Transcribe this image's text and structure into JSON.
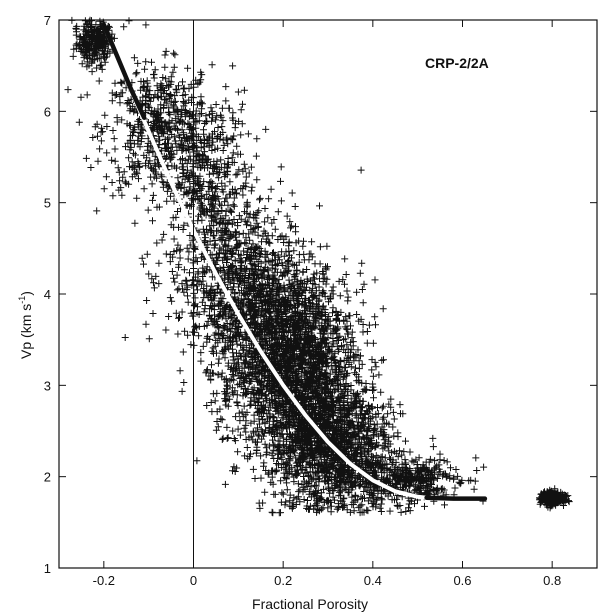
{
  "chart_data": {
    "type": "scatter",
    "title": "",
    "annotation": "CRP-2/2A",
    "xlabel": "Fractional Porosity",
    "ylabel_main": "Vp (km s",
    "ylabel_sup": "-1",
    "ylabel_close": ")",
    "xlim": [
      -0.3,
      0.9
    ],
    "ylim": [
      1,
      7
    ],
    "x_ticks": [
      -0.2,
      0,
      0.2,
      0.4,
      0.6,
      0.8
    ],
    "x_tick_labels": [
      "-0.2",
      "0",
      "0.2",
      "0.4",
      "0.6",
      "0.8"
    ],
    "y_ticks": [
      1,
      2,
      3,
      4,
      5,
      6,
      7
    ],
    "y_tick_labels": [
      "1",
      "2",
      "3",
      "4",
      "5",
      "6",
      "7"
    ],
    "vertical_reference_line_x": 0,
    "grid": false,
    "marker": "+",
    "colors": {
      "points": "#111111",
      "fit_white": "#ffffff",
      "fit_black": "#111111",
      "axes": "#111111"
    },
    "scatter_point_count": 6500,
    "scatter_clusters": [
      {
        "x": -0.22,
        "y": 6.75,
        "sx": 0.02,
        "sy": 0.12,
        "weight": 0.04
      },
      {
        "x": -0.08,
        "y": 5.8,
        "sx": 0.06,
        "sy": 0.35,
        "weight": 0.08
      },
      {
        "x": 0.03,
        "y": 5.2,
        "sx": 0.05,
        "sy": 0.5,
        "weight": 0.07
      },
      {
        "x": 0.08,
        "y": 4.2,
        "sx": 0.07,
        "sy": 0.45,
        "weight": 0.08
      },
      {
        "x": 0.17,
        "y": 3.6,
        "sx": 0.07,
        "sy": 0.5,
        "weight": 0.2
      },
      {
        "x": 0.24,
        "y": 3.0,
        "sx": 0.07,
        "sy": 0.55,
        "weight": 0.25
      },
      {
        "x": 0.32,
        "y": 2.3,
        "sx": 0.06,
        "sy": 0.35,
        "weight": 0.18
      },
      {
        "x": 0.48,
        "y": 1.95,
        "sx": 0.06,
        "sy": 0.12,
        "weight": 0.06
      },
      {
        "x": 0.8,
        "y": 1.76,
        "sx": 0.013,
        "sy": 0.04,
        "weight": 0.04
      }
    ],
    "fit_curve_white": {
      "x": [
        -0.2,
        -0.15,
        -0.1,
        -0.05,
        0,
        0.05,
        0.1,
        0.15,
        0.2,
        0.25,
        0.3,
        0.35,
        0.4,
        0.45,
        0.5,
        0.52
      ],
      "y": [
        6.95,
        6.35,
        5.78,
        5.22,
        4.7,
        4.22,
        3.78,
        3.37,
        3.0,
        2.67,
        2.38,
        2.14,
        1.96,
        1.84,
        1.78,
        1.77
      ]
    },
    "fit_curve_black_upper": {
      "x": [
        -0.2,
        -0.17,
        -0.14,
        -0.11
      ],
      "y": [
        6.95,
        6.6,
        6.25,
        5.93
      ]
    },
    "fit_curve_black_tail": {
      "x": [
        0.52,
        0.58,
        0.65
      ],
      "y": [
        1.77,
        1.76,
        1.76
      ]
    }
  }
}
